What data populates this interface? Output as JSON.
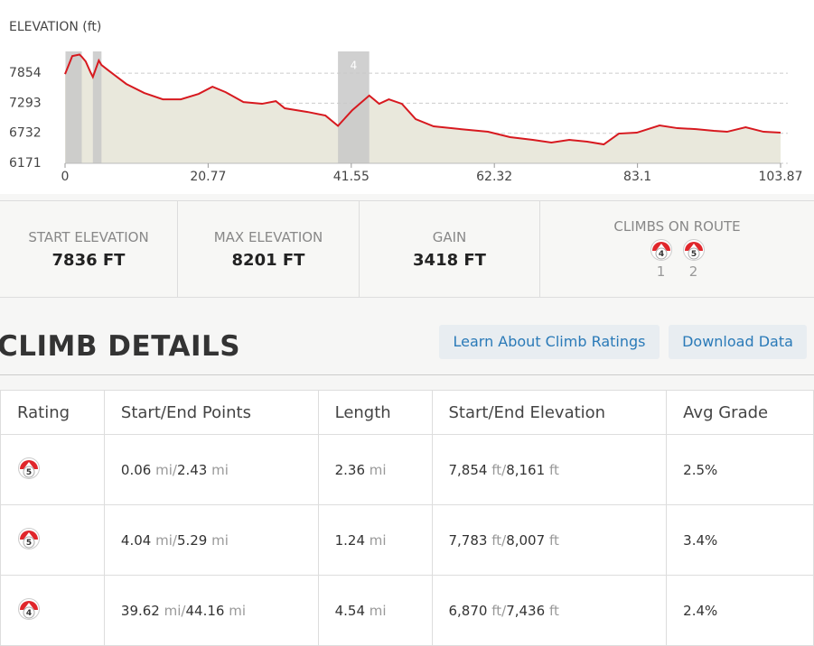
{
  "chart_data": {
    "type": "line",
    "title": "ELEVATION (ft)",
    "x": [
      0,
      1.05,
      2.1,
      2.43,
      3.0,
      3.7,
      4.04,
      4.9,
      5.29,
      6.3,
      8.9,
      11.5,
      14.2,
      16.8,
      19.4,
      21.4,
      23.3,
      25.9,
      28.6,
      30.6,
      31.9,
      35.2,
      37.8,
      39.62,
      41.7,
      44.16,
      45.6,
      47.0,
      48.9,
      50.9,
      53.5,
      57.4,
      61.4,
      64.6,
      67.9,
      70.6,
      73.2,
      75.8,
      78.2,
      80.4,
      83.0,
      86.3,
      88.9,
      91.6,
      94.2,
      96.1,
      98.8,
      101.4,
      103.87
    ],
    "values": [
      7836,
      8174,
      8201,
      8161,
      8073,
      7870,
      7783,
      8090,
      8007,
      7905,
      7652,
      7484,
      7366,
      7366,
      7467,
      7602,
      7500,
      7315,
      7282,
      7332,
      7198,
      7130,
      7063,
      6870,
      7164,
      7436,
      7282,
      7366,
      7282,
      6996,
      6861,
      6810,
      6760,
      6659,
      6609,
      6558,
      6609,
      6575,
      6524,
      6726,
      6743,
      6878,
      6827,
      6810,
      6777,
      6760,
      6844,
      6760,
      6743
    ],
    "color": "#d7191f",
    "fill_color": "#e9e8dc",
    "xlim": [
      0,
      103.87
    ],
    "xticks": [
      0,
      20.77,
      41.55,
      62.32,
      83.1,
      103.87
    ],
    "ylim": [
      6171,
      8260
    ],
    "yticks": [
      6171,
      6732,
      7293,
      7854
    ],
    "grid": true,
    "highlight_color": "#c8c8c8",
    "highlights": [
      {
        "start": 0.06,
        "end": 2.43
      },
      {
        "start": 4.04,
        "end": 5.29
      },
      {
        "start": 39.62,
        "end": 44.16,
        "label": "4"
      }
    ]
  },
  "stats": [
    {
      "label": "START ELEVATION",
      "value": "7836 FT"
    },
    {
      "label": "MAX ELEVATION",
      "value": "8201 FT"
    },
    {
      "label": "GAIN",
      "value": "3418 FT"
    }
  ],
  "climbs_on_route": {
    "label": "CLIMBS ON ROUTE",
    "items": [
      {
        "rating": "4",
        "number": "1"
      },
      {
        "rating": "5",
        "number": "2"
      }
    ]
  },
  "climb_details": {
    "title": "CLIMB DETAILS",
    "buttons": [
      "Learn About Climb Ratings",
      "Download Data"
    ]
  },
  "table": {
    "columns": [
      "Rating",
      "Start/End Points",
      "Length",
      "Start/End Elevation",
      "Avg Grade"
    ],
    "distance_unit": "mi",
    "elevation_unit": "ft",
    "separator": "/",
    "rows": [
      {
        "rating": "5",
        "start": "0.06",
        "end": "2.43",
        "length": "2.36",
        "start_elev": "7,854",
        "end_elev": "8,161",
        "grade": "2.5%"
      },
      {
        "rating": "5",
        "start": "4.04",
        "end": "5.29",
        "length": "1.24",
        "start_elev": "7,783",
        "end_elev": "8,007",
        "grade": "3.4%"
      },
      {
        "rating": "4",
        "start": "39.62",
        "end": "44.16",
        "length": "4.54",
        "start_elev": "6,870",
        "end_elev": "7,436",
        "grade": "2.4%"
      }
    ]
  }
}
